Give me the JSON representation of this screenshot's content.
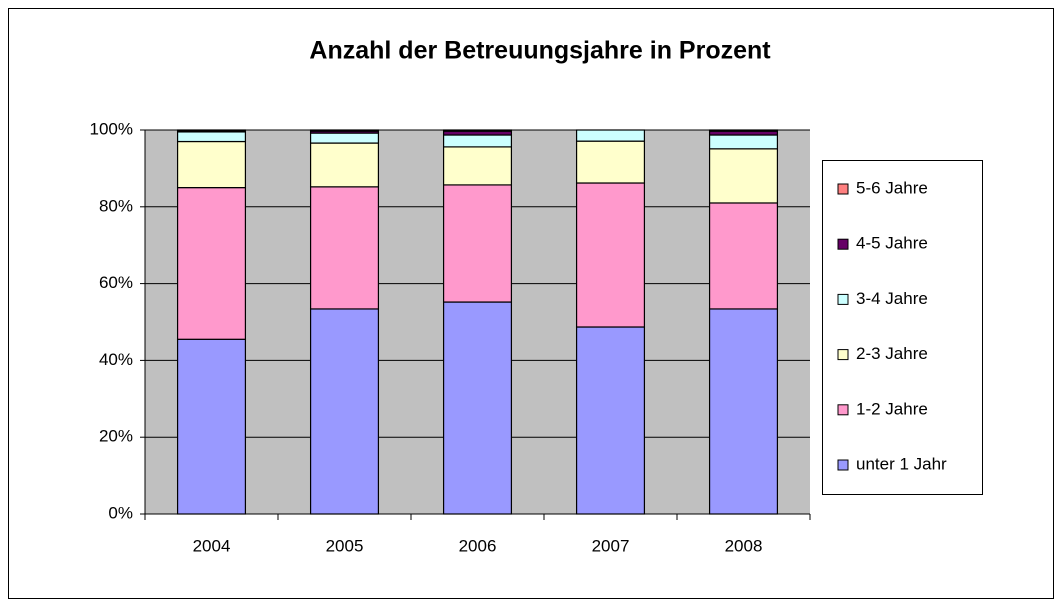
{
  "chart_data": {
    "type": "stacked_bar",
    "title": "Anzahl der Betreuungsjahre in Prozent",
    "categories": [
      "2004",
      "2005",
      "2006",
      "2007",
      "2008"
    ],
    "series": [
      {
        "name": "unter 1 Jahr",
        "color": "#9999ff",
        "values": [
          45.5,
          53.4,
          55.2,
          48.7,
          53.4
        ]
      },
      {
        "name": "1-2 Jahre",
        "color": "#ff99cc",
        "values": [
          39.5,
          31.8,
          30.5,
          37.5,
          27.6
        ]
      },
      {
        "name": "2-3 Jahre",
        "color": "#ffffcc",
        "values": [
          12,
          11.4,
          9.9,
          10.9,
          14.1
        ]
      },
      {
        "name": "3-4 Jahre",
        "color": "#ccffff",
        "values": [
          2.5,
          2.6,
          3.1,
          2.9,
          3.6
        ]
      },
      {
        "name": "4-5 Jahre",
        "color": "#660066",
        "values": [
          0.3,
          0.5,
          1.0,
          0,
          1.0
        ]
      },
      {
        "name": "5-6 Jahre",
        "color": "#ff8080",
        "values": [
          0.2,
          0.3,
          0.3,
          0,
          0.3
        ]
      }
    ],
    "ylim": [
      0,
      100
    ],
    "yticks": [
      {
        "value": 0,
        "label": "0%"
      },
      {
        "value": 20,
        "label": "20%"
      },
      {
        "value": 40,
        "label": "40%"
      },
      {
        "value": 60,
        "label": "60%"
      },
      {
        "value": 80,
        "label": "80%"
      },
      {
        "value": 100,
        "label": "100%"
      }
    ],
    "grid": true,
    "legend": "right"
  }
}
